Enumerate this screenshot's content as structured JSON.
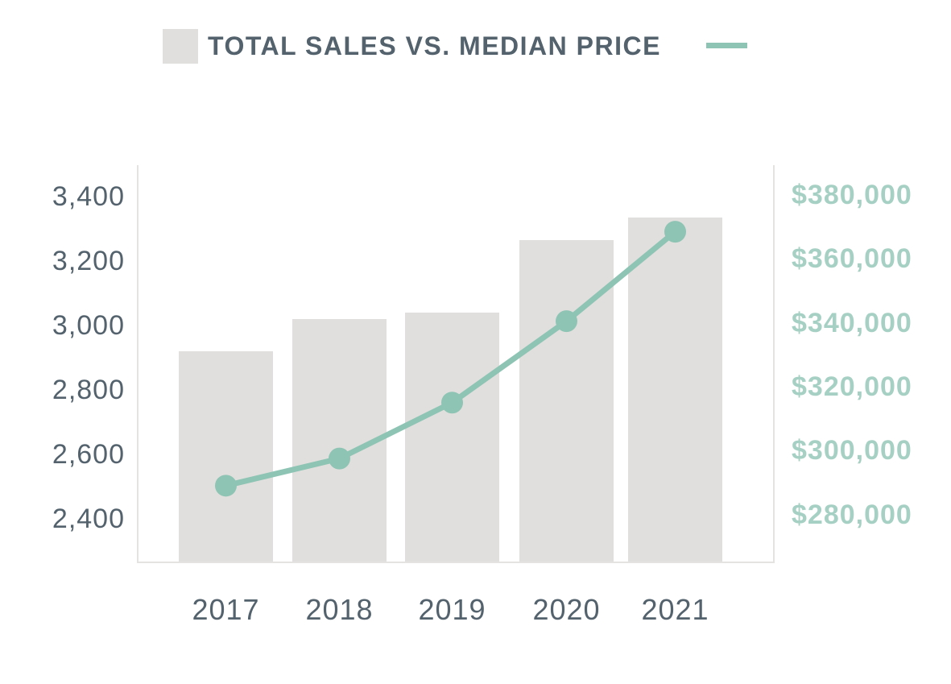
{
  "title": "TOTAL SALES VS. MEDIAN PRICE",
  "colors": {
    "bar_fill": "#e1dfdd",
    "line_color": "#8ec4b4",
    "right_tick_color": "#a6d0c3",
    "dark_text": "#53626d",
    "axis_line": "#e4e3e2",
    "background": "#ffffff"
  },
  "legend": {
    "bar_swatch_icon": "gray-square-swatch",
    "line_swatch_icon": "teal-line-swatch"
  },
  "chart_data": {
    "type": "bar+line",
    "title": "TOTAL SALES VS. MEDIAN PRICE",
    "categories": [
      "2017",
      "2018",
      "2019",
      "2020",
      "2021"
    ],
    "series": [
      {
        "name": "Total Sales",
        "type": "bar",
        "axis": "left",
        "values": [
          2920,
          3020,
          3040,
          3265,
          3335
        ]
      },
      {
        "name": "Median Price",
        "type": "line",
        "axis": "right",
        "values": [
          289000,
          297500,
          315000,
          340500,
          368500
        ]
      }
    ],
    "left_axis": {
      "tick_labels": [
        "3,400",
        "3,200",
        "3,000",
        "2,800",
        "2,600",
        "2,400"
      ],
      "tick_values": [
        3400,
        3200,
        3000,
        2800,
        2600,
        2400
      ],
      "range": [
        2400,
        3400
      ]
    },
    "right_axis": {
      "tick_labels": [
        "$380,000",
        "$360,000",
        "$340,000",
        "$320,000",
        "$300,000",
        "$280,000"
      ],
      "tick_values": [
        380000,
        360000,
        340000,
        320000,
        300000,
        280000
      ],
      "range": [
        280000,
        380000
      ]
    },
    "grid": "off",
    "legend_position": "top"
  }
}
